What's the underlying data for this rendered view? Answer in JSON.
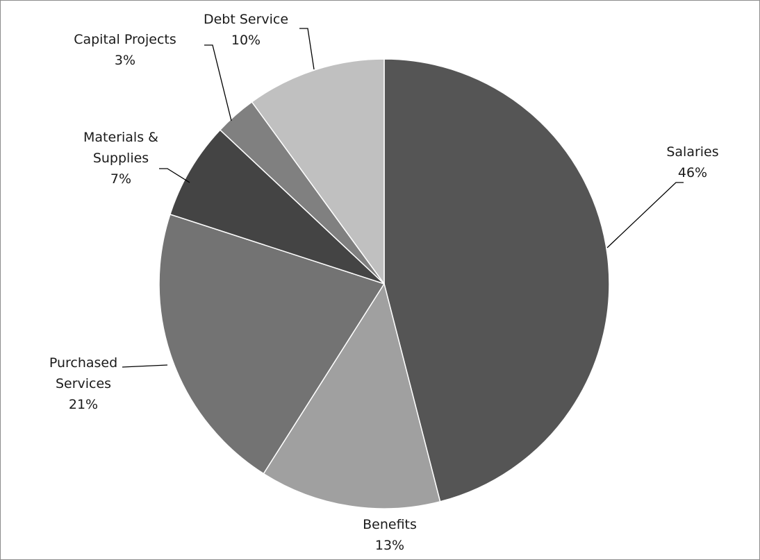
{
  "chart_data": {
    "type": "pie",
    "start_angle_deg": 0,
    "direction": "clockwise",
    "slices": [
      {
        "label": [
          "Salaries"
        ],
        "value": 46,
        "value_label": "46%",
        "color": "#555555"
      },
      {
        "label": [
          "Benefits"
        ],
        "value": 13,
        "value_label": "13%",
        "color": "#a0a0a0"
      },
      {
        "label": [
          "Purchased",
          "Services"
        ],
        "value": 21,
        "value_label": "21%",
        "color": "#737373"
      },
      {
        "label": [
          "Materials &",
          "Supplies"
        ],
        "value": 7,
        "value_label": "7%",
        "color": "#444444"
      },
      {
        "label": [
          "Capital Projects"
        ],
        "value": 3,
        "value_label": "3%",
        "color": "#808080"
      },
      {
        "label": [
          "Debt Service"
        ],
        "value": 10,
        "value_label": "10%",
        "color": "#c0c0c0"
      }
    ]
  }
}
